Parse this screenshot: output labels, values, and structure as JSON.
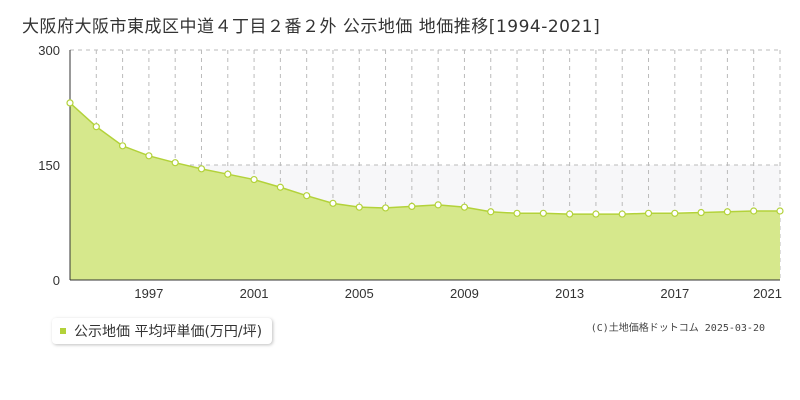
{
  "title": "大阪府大阪市東成区中道４丁目２番２外 公示地価 地価推移[1994-2021]",
  "legend_label": "公示地価 平均坪単価(万円/坪)",
  "copyright": "(C)土地価格ドットコム 2025-03-20",
  "colors": {
    "fill": "#d6e88c",
    "line": "#b3d23a",
    "grid": "#bbbbbb",
    "band": "#f7f7f9"
  },
  "chart_data": {
    "type": "area",
    "title": "大阪府大阪市東成区中道４丁目２番２外 公示地価 地価推移[1994-2021]",
    "xlabel": "",
    "ylabel": "",
    "ylim": [
      0,
      300
    ],
    "xlim": [
      1994,
      2021
    ],
    "y_ticks": [
      0,
      150,
      300
    ],
    "x_ticks": [
      1997,
      2001,
      2005,
      2009,
      2013,
      2017,
      2021
    ],
    "grid": true,
    "legend_position": "bottom-left",
    "series": [
      {
        "name": "公示地価 平均坪単価(万円/坪)",
        "x": [
          1994,
          1995,
          1996,
          1997,
          1998,
          1999,
          2000,
          2001,
          2002,
          2003,
          2004,
          2005,
          2006,
          2007,
          2008,
          2009,
          2010,
          2011,
          2012,
          2013,
          2014,
          2015,
          2016,
          2017,
          2018,
          2019,
          2020,
          2021
        ],
        "values": [
          231,
          200,
          175,
          162,
          153,
          145,
          138,
          131,
          121,
          110,
          100,
          95,
          94,
          96,
          98,
          95,
          89,
          87,
          87,
          86,
          86,
          86,
          87,
          87,
          88,
          89,
          90,
          90
        ]
      }
    ]
  }
}
